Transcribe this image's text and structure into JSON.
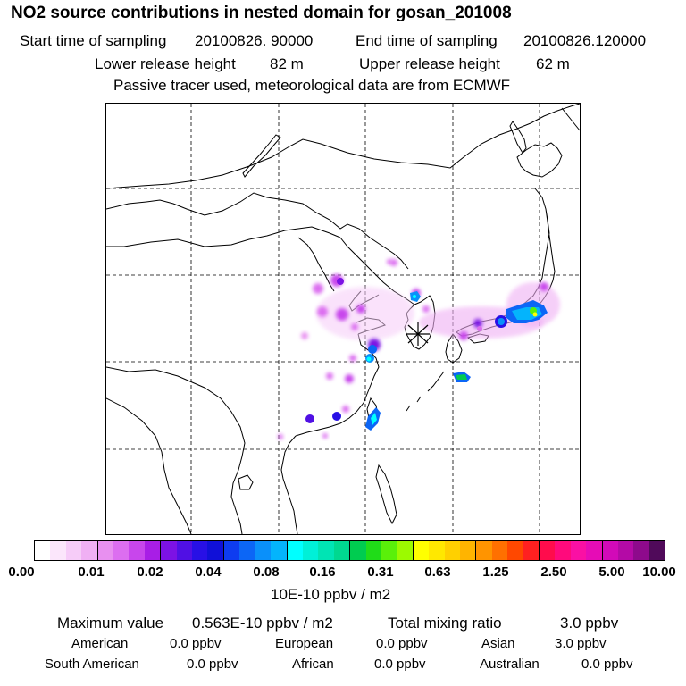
{
  "header": {
    "title": "NO2 source contributions in nested domain for gosan_201008",
    "start_label": "Start time of sampling",
    "start_value": "20100826. 90000",
    "end_label": "End time of sampling",
    "end_value": "20100826.120000",
    "lower_label": "Lower release height",
    "lower_value": "82 m",
    "upper_label": "Upper release height",
    "upper_value": "62 m",
    "note": "Passive tracer used, meteorological data are from ECMWF"
  },
  "colorbar": {
    "ticks": [
      "0.00",
      "0.01",
      "0.02",
      "0.04",
      "0.08",
      "0.16",
      "0.31",
      "0.63",
      "1.25",
      "2.50",
      "5.00",
      "10.00"
    ],
    "unit": "10E-10 ppbv / m2",
    "colors": [
      "#ffffff",
      "#fbe6fb",
      "#f6ccf8",
      "#f0b0f4",
      "#e890f0",
      "#dc6ef0",
      "#c846ec",
      "#a81ee6",
      "#7c12e4",
      "#5010e4",
      "#2810e6",
      "#1010d8",
      "#0e3cf0",
      "#0c66f6",
      "#0a90fa",
      "#04b4fc",
      "#00ffff",
      "#00f0d8",
      "#00e4b4",
      "#00d890",
      "#00cc50",
      "#20dc18",
      "#5af00a",
      "#9cfa00",
      "#ffff00",
      "#ffe800",
      "#ffd000",
      "#ffb400",
      "#ff9400",
      "#ff7000",
      "#ff4800",
      "#ff2020",
      "#ff0c4c",
      "#ff0a7c",
      "#fa10a4",
      "#e60cb6",
      "#d20ab8",
      "#b40aa6",
      "#8e0a8c",
      "#500a5a"
    ]
  },
  "stats": {
    "max_label": "Maximum value",
    "max_value": "0.563E-10 ppbv / m2",
    "total_label": "Total mixing ratio",
    "total_value": "3.0 ppbv",
    "sources": [
      {
        "name": "American",
        "value": "0.0 ppbv"
      },
      {
        "name": "European",
        "value": "0.0 ppbv"
      },
      {
        "name": "Asian",
        "value": "3.0 ppbv"
      },
      {
        "name": "South American",
        "value": "0.0 ppbv"
      },
      {
        "name": "African",
        "value": "0.0 ppbv"
      },
      {
        "name": "Australian",
        "value": "0.0 ppbv"
      }
    ]
  },
  "map": {
    "receptor_marker": "gosan receptor (star)"
  }
}
